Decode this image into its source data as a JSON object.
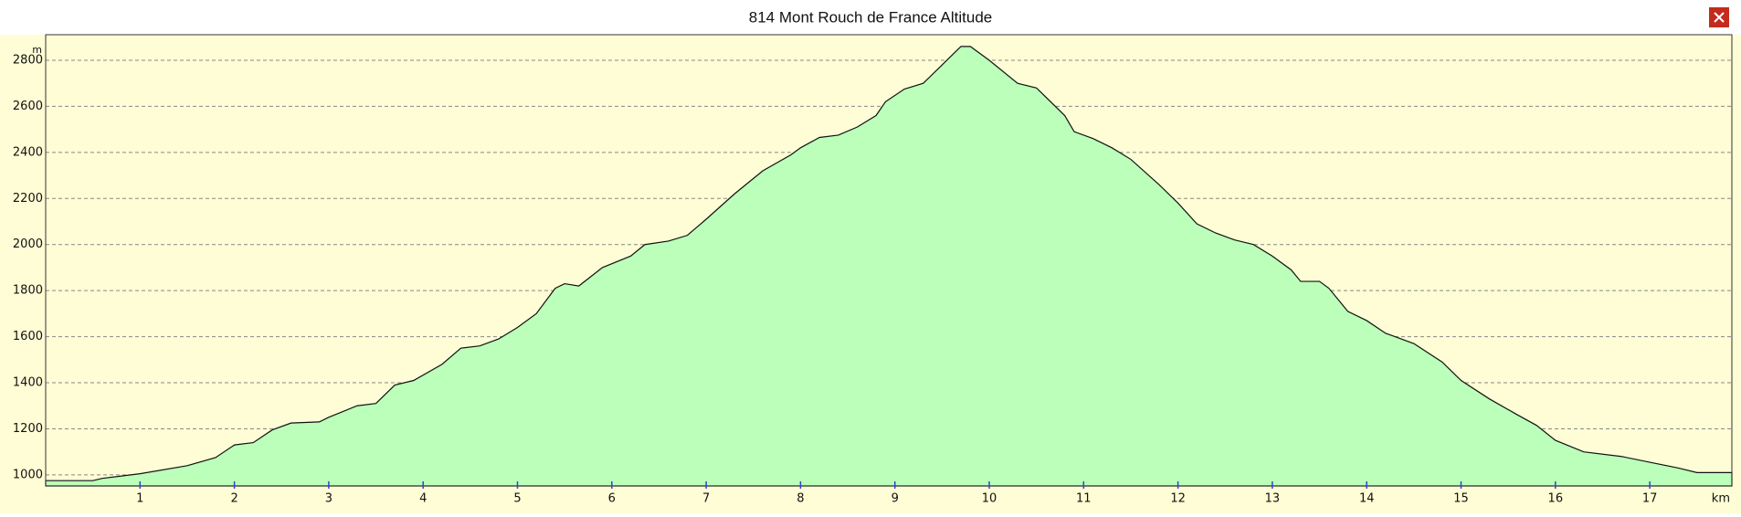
{
  "chart_data": {
    "type": "area",
    "title": "814 Mont Rouch de France Altitude",
    "x_label": "km",
    "y_label": "m",
    "x": [
      0,
      0.5,
      0.6,
      1.0,
      1.5,
      1.8,
      2.0,
      2.2,
      2.4,
      2.6,
      2.9,
      3.0,
      3.3,
      3.5,
      3.7,
      3.9,
      4.2,
      4.4,
      4.6,
      4.8,
      5.0,
      5.2,
      5.4,
      5.5,
      5.65,
      5.9,
      6.2,
      6.35,
      6.6,
      6.8,
      7.0,
      7.3,
      7.6,
      7.9,
      8.0,
      8.2,
      8.4,
      8.6,
      8.8,
      8.9,
      9.1,
      9.3,
      9.5,
      9.7,
      9.8,
      10.0,
      10.3,
      10.5,
      10.8,
      10.9,
      11.1,
      11.3,
      11.5,
      11.8,
      12.0,
      12.2,
      12.4,
      12.6,
      12.8,
      13.0,
      13.2,
      13.3,
      13.5,
      13.6,
      13.8,
      14.0,
      14.2,
      14.5,
      14.8,
      15.0,
      15.3,
      15.6,
      15.8,
      16.0,
      16.3,
      16.7,
      17.0,
      17.3,
      17.5,
      17.87
    ],
    "series": [
      {
        "color": "#bbffbb",
        "values": [
          975,
          975,
          985,
          1005,
          1040,
          1075,
          1130,
          1140,
          1195,
          1225,
          1230,
          1250,
          1300,
          1310,
          1390,
          1410,
          1480,
          1550,
          1560,
          1590,
          1640,
          1700,
          1810,
          1830,
          1820,
          1900,
          1950,
          2000,
          2015,
          2040,
          2110,
          2220,
          2320,
          2390,
          2420,
          2465,
          2475,
          2510,
          2560,
          2620,
          2675,
          2700,
          2780,
          2860,
          2860,
          2800,
          2700,
          2680,
          2560,
          2490,
          2460,
          2420,
          2370,
          2260,
          2180,
          2090,
          2050,
          2020,
          2000,
          1950,
          1890,
          1840,
          1840,
          1810,
          1710,
          1670,
          1615,
          1570,
          1490,
          1410,
          1330,
          1260,
          1215,
          1150,
          1100,
          1080,
          1055,
          1030,
          1010,
          1010
        ]
      }
    ],
    "xlim": [
      0,
      17.87
    ],
    "ylim": [
      952,
      2911
    ],
    "xticks": [
      1,
      2,
      3,
      4,
      5,
      6,
      7,
      8,
      9,
      10,
      11,
      12,
      13,
      14,
      15,
      16,
      17
    ],
    "yticks": [
      1000,
      1200,
      1400,
      1600,
      1800,
      2000,
      2200,
      2400,
      2600,
      2800
    ],
    "grid": true
  }
}
